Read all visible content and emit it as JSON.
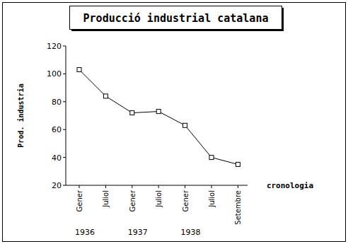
{
  "chart_data": {
    "type": "line",
    "title": "Producció industrial catalana",
    "y_label": "Prod. industria",
    "x_label": "cronologia",
    "categories": [
      "Gener",
      "Juliol",
      "Gener",
      "Juliol",
      "Gener",
      "Juliol",
      "Setembre"
    ],
    "values": [
      103,
      84,
      72,
      73,
      63,
      40,
      35
    ],
    "annotations": [
      "1936",
      "1937",
      "1938"
    ],
    "color": "#000000",
    "marker": "square",
    "line_style": "solid",
    "ylim": [
      20,
      120
    ],
    "yticks": [
      20,
      40,
      60,
      80,
      100,
      120
    ],
    "grid": false
  }
}
